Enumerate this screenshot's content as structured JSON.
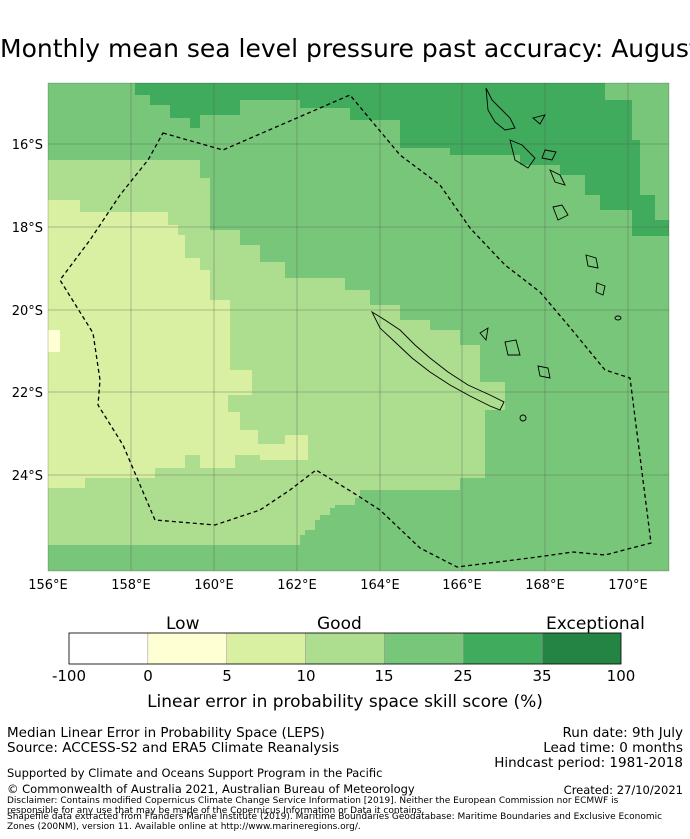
{
  "title": "Monthly mean sea level pressure past accuracy: August",
  "map": {
    "lon_ticks": [
      "156°E",
      "158°E",
      "160°E",
      "162°E",
      "164°E",
      "166°E",
      "168°E",
      "170°E"
    ],
    "lat_ticks": [
      "16°S",
      "18°S",
      "20°S",
      "22°S",
      "24°S"
    ],
    "lon_range": [
      155.8,
      171.0
    ],
    "lat_range": [
      -26.3,
      -14.7
    ],
    "colors": {
      "c0": "#ffffd4",
      "c1": "#d9efa2",
      "c2": "#addd8e",
      "c3": "#78c679",
      "c4": "#41ab5d",
      "c5": "#238443"
    }
  },
  "legend": {
    "categories": [
      "Low",
      "Good",
      "Exceptional"
    ],
    "ticks": [
      "-100",
      "0",
      "5",
      "10",
      "15",
      "25",
      "35",
      "100"
    ],
    "colors": [
      "#ffffff",
      "#ffffd4",
      "#d9efa2",
      "#addd8e",
      "#78c679",
      "#41ab5d",
      "#238443"
    ],
    "title": "Linear error in probability space skill score (%)"
  },
  "footer": {
    "method": "Median Linear Error in Probability Space (LEPS)",
    "source": "Source: ACCESS-S2 and ERA5 Climate Reanalysis",
    "run_date": "Run date: 9th July",
    "lead_time": "Lead time: 0 months",
    "hindcast": "Hindcast period: 1981-2018",
    "support": "Supported by Climate and Oceans Support Program in the Pacific",
    "copyright": "© Commonwealth of Australia 2021, Australian Bureau of Meteorology",
    "created": "Created: 27/10/2021",
    "disclaimer1": "Disclaimer: Contains modified Copernicus Climate Change Service Information [2019]. Neither the European Commission nor ECMWF is",
    "disclaimer2": "responsible for any use that may be made of the Copernicus Information or Data it contains.",
    "shapefile1": "Shapefile data extracted from Flanders Marine Institute (2019). Maritime Boundaries Geodatabase: Maritime Boundaries and Exclusive Economic",
    "shapefile2": "Zones (200NM), version 11. Available online at http://www.marineregions.org/."
  }
}
